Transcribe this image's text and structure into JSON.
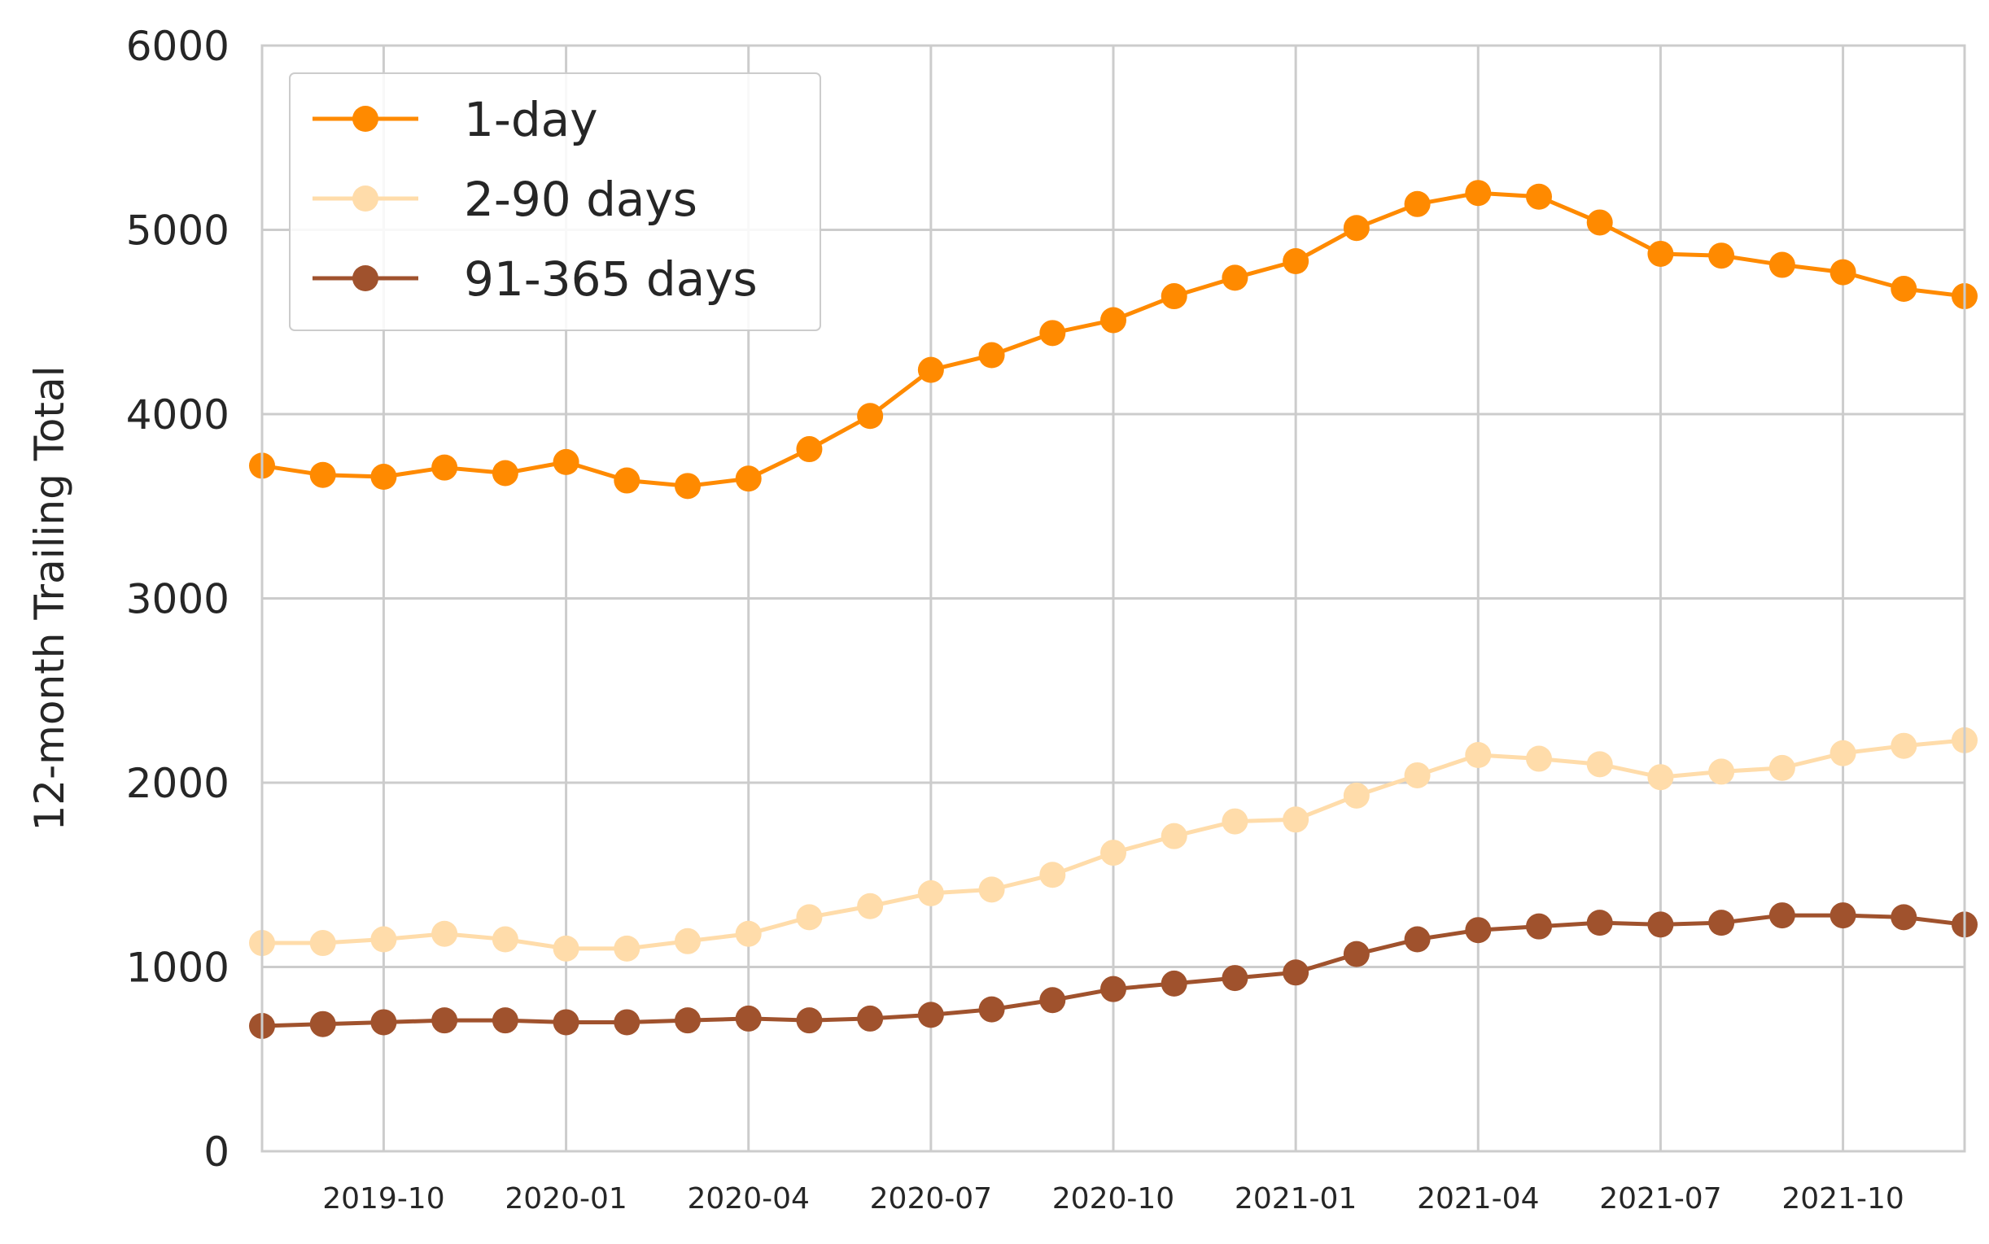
{
  "chart_data": {
    "type": "line",
    "ylabel": "12-month Trailing Total",
    "xlabel": "",
    "ylim": [
      0,
      6000
    ],
    "xlim": [
      "2019-08",
      "2021-12"
    ],
    "grid": true,
    "legend_position": "top-left",
    "y_ticks": [
      0,
      1000,
      2000,
      3000,
      4000,
      5000,
      6000
    ],
    "x_ticks": [
      "2019-10",
      "2020-01",
      "2020-04",
      "2020-07",
      "2020-10",
      "2021-01",
      "2021-04",
      "2021-07",
      "2021-10"
    ],
    "x": [
      "2019-08",
      "2019-09",
      "2019-10",
      "2019-11",
      "2019-12",
      "2020-01",
      "2020-02",
      "2020-03",
      "2020-04",
      "2020-05",
      "2020-06",
      "2020-07",
      "2020-08",
      "2020-09",
      "2020-10",
      "2020-11",
      "2020-12",
      "2021-01",
      "2021-02",
      "2021-03",
      "2021-04",
      "2021-05",
      "2021-06",
      "2021-07",
      "2021-08",
      "2021-09",
      "2021-10",
      "2021-11",
      "2021-12"
    ],
    "series": [
      {
        "name": "1-day",
        "color": "#ff8a00",
        "values": [
          3720,
          3670,
          3660,
          3710,
          3680,
          3740,
          3640,
          3610,
          3650,
          3810,
          3990,
          4240,
          4320,
          4440,
          4510,
          4640,
          4740,
          4830,
          5010,
          5140,
          5200,
          5180,
          5040,
          4870,
          4860,
          4810,
          4770,
          4680,
          4640
        ]
      },
      {
        "name": "2-90 days",
        "color": "#ffdcaa",
        "values": [
          1130,
          1130,
          1150,
          1180,
          1150,
          1100,
          1100,
          1140,
          1180,
          1270,
          1330,
          1400,
          1420,
          1500,
          1620,
          1710,
          1790,
          1800,
          1930,
          2040,
          2150,
          2130,
          2100,
          2030,
          2060,
          2080,
          2160,
          2200,
          2230
        ]
      },
      {
        "name": "91-365 days",
        "color": "#a0522d",
        "values": [
          680,
          690,
          700,
          710,
          710,
          700,
          700,
          710,
          720,
          710,
          720,
          740,
          770,
          820,
          880,
          910,
          940,
          970,
          1070,
          1150,
          1200,
          1220,
          1240,
          1230,
          1240,
          1280,
          1280,
          1270,
          1230
        ]
      }
    ]
  }
}
